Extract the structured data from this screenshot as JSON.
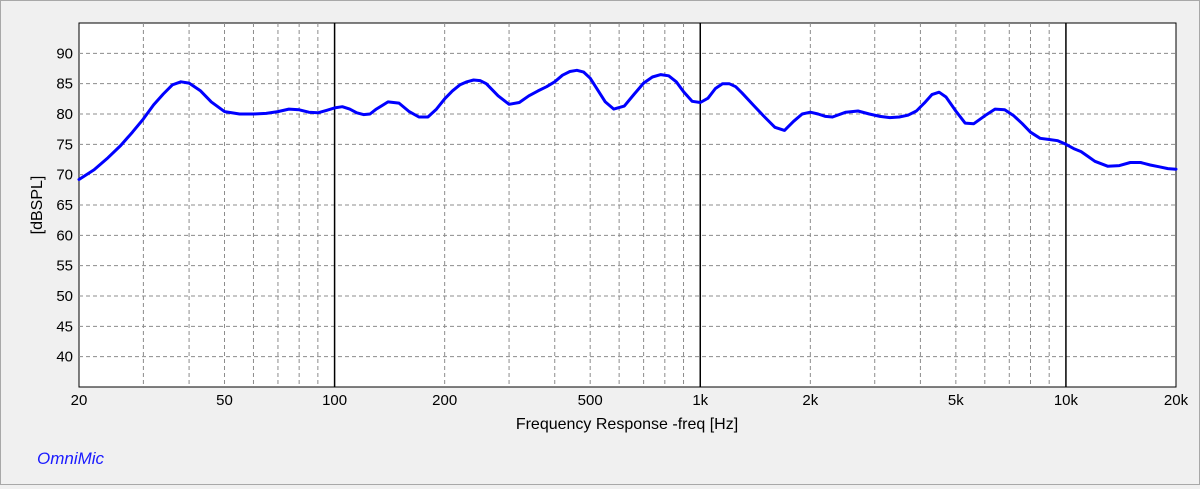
{
  "colors": {
    "curve": "#0000ff",
    "brand": "#1a1aff",
    "grid": "#8c8c8c",
    "decade": "#000000"
  },
  "brand": "OmniMic",
  "chart_data": {
    "type": "line",
    "xlabel": "Frequency Response -freq [Hz]",
    "ylabel": "[dBSPL]",
    "xscale": "log",
    "xlim": [
      20,
      20000
    ],
    "ylim": [
      35,
      95
    ],
    "grid": true,
    "yticks": [
      40,
      45,
      50,
      55,
      60,
      65,
      70,
      75,
      80,
      85,
      90
    ],
    "xticks": [
      {
        "value": 20,
        "label": "20"
      },
      {
        "value": 50,
        "label": "50"
      },
      {
        "value": 100,
        "label": "100"
      },
      {
        "value": 200,
        "label": "200"
      },
      {
        "value": 500,
        "label": "500"
      },
      {
        "value": 1000,
        "label": "1k"
      },
      {
        "value": 2000,
        "label": "2k"
      },
      {
        "value": 5000,
        "label": "5k"
      },
      {
        "value": 10000,
        "label": "10k"
      },
      {
        "value": 20000,
        "label": "20k"
      }
    ],
    "series": [
      {
        "x": [
          20,
          22,
          24,
          26,
          28,
          30,
          32,
          34,
          36,
          38,
          40,
          43,
          46,
          50,
          55,
          60,
          65,
          70,
          75,
          80,
          85,
          90,
          95,
          100,
          105,
          110,
          115,
          120,
          125,
          130,
          140,
          150,
          160,
          170,
          180,
          190,
          200,
          210,
          220,
          230,
          240,
          250,
          260,
          280,
          300,
          320,
          340,
          360,
          380,
          400,
          420,
          440,
          460,
          480,
          500,
          520,
          550,
          580,
          620,
          660,
          700,
          740,
          780,
          820,
          860,
          900,
          950,
          1000,
          1050,
          1100,
          1150,
          1200,
          1250,
          1300,
          1400,
          1500,
          1600,
          1700,
          1800,
          1900,
          2000,
          2100,
          2200,
          2300,
          2500,
          2700,
          2900,
          3100,
          3300,
          3500,
          3700,
          3900,
          4100,
          4300,
          4500,
          4700,
          5000,
          5300,
          5600,
          6000,
          6400,
          6800,
          7200,
          7600,
          8000,
          8500,
          9000,
          9500,
          10000,
          10500,
          11000,
          11500,
          12000,
          13000,
          14000,
          15000,
          16000,
          17000,
          18000,
          19000,
          20000
        ],
        "y": [
          69.2,
          70.8,
          72.8,
          74.8,
          77.0,
          79.2,
          81.5,
          83.3,
          84.8,
          85.3,
          85.1,
          83.8,
          82.0,
          80.4,
          80.0,
          80.0,
          80.1,
          80.4,
          80.8,
          80.7,
          80.3,
          80.2,
          80.6,
          81.0,
          81.2,
          80.8,
          80.2,
          79.9,
          80.0,
          80.8,
          82.0,
          81.8,
          80.4,
          79.5,
          79.5,
          80.8,
          82.5,
          83.8,
          84.8,
          85.3,
          85.6,
          85.5,
          85.0,
          83.0,
          81.6,
          81.9,
          83.0,
          83.8,
          84.5,
          85.3,
          86.4,
          87.0,
          87.2,
          86.9,
          85.9,
          84.3,
          82.0,
          80.8,
          81.3,
          83.3,
          85.1,
          86.1,
          86.5,
          86.3,
          85.3,
          83.7,
          82.1,
          81.9,
          82.6,
          84.2,
          85.0,
          85.0,
          84.5,
          83.5,
          81.4,
          79.5,
          77.8,
          77.3,
          78.8,
          80.0,
          80.3,
          80.0,
          79.6,
          79.5,
          80.3,
          80.5,
          80.0,
          79.6,
          79.4,
          79.5,
          79.8,
          80.5,
          81.8,
          83.2,
          83.6,
          82.8,
          80.5,
          78.5,
          78.4,
          79.7,
          80.8,
          80.7,
          79.7,
          78.4,
          77.0,
          76.0,
          75.8,
          75.6,
          75.0,
          74.3,
          73.8,
          73.0,
          72.2,
          71.4,
          71.5,
          72.0,
          72.0,
          71.6,
          71.3,
          71.0,
          70.9
        ]
      }
    ]
  }
}
